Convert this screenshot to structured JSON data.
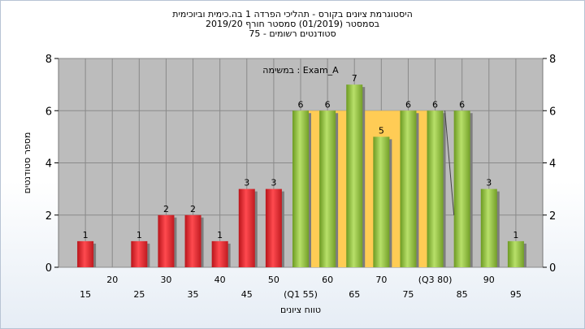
{
  "chart_data": {
    "type": "bar",
    "title": [
      "היסטוגרמת ציונים בקורס - תהליכי הפרדה 1 בה.כימית וביוכימית",
      "בסמסטר  (01/2019)  סמסטר חורף 2019/20",
      "75 - סטודנטים רשומים"
    ],
    "xlabel": "טווח ציונים",
    "ylabel": "מספר סטודנטים",
    "ylim": [
      0,
      8
    ],
    "yticks": [
      0,
      2,
      4,
      6,
      8
    ],
    "annotation": "במשימה : Exam_A",
    "x_ticks_lower": [
      "15",
      "25",
      "35",
      "45",
      "(Q1 55)",
      "65",
      "75",
      "85",
      "95"
    ],
    "x_ticks_upper": [
      "20",
      "30",
      "40",
      "50",
      "60",
      "70",
      "(Q3 80)",
      "90"
    ],
    "bins": [
      15,
      20,
      25,
      30,
      35,
      40,
      45,
      50,
      55,
      60,
      65,
      70,
      75,
      80,
      85,
      90,
      95
    ],
    "values": [
      1,
      0,
      1,
      2,
      2,
      1,
      3,
      3,
      6,
      6,
      7,
      5,
      6,
      6,
      6,
      3,
      1
    ],
    "bar_groups": [
      "red",
      "red",
      "red",
      "red",
      "red",
      "red",
      "red",
      "red",
      "green",
      "green",
      "green",
      "green",
      "green",
      "green",
      "green",
      "green",
      "green"
    ],
    "iqr_band": {
      "q1": 55,
      "q3": 80,
      "level": 6
    },
    "colors": {
      "plot_bg": "#bcbcbc",
      "grid": "#8a8a8a",
      "red_bar": "#e8262c",
      "green_bar": "#8fbe3c",
      "iqr_band": "#ffcc55",
      "line": "#444444"
    },
    "grid": true
  }
}
